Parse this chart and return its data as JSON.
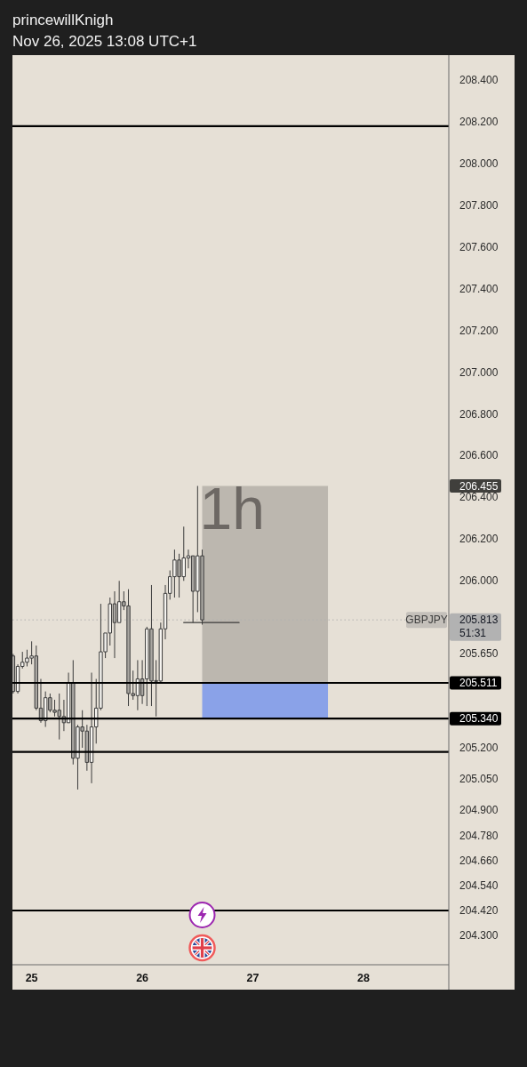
{
  "chart_data": {
    "type": "candlestick",
    "title": "princewillKnigh",
    "subtitle": "Nov 26, 2025 13:08 UTC+1",
    "x": [
      "2025-11-24T20:00",
      "2025-11-24T21:00",
      "2025-11-24T22:00",
      "2025-11-24T23:00",
      "2025-11-25T00:00",
      "2025-11-25T01:00",
      "2025-11-25T02:00",
      "2025-11-25T03:00",
      "2025-11-25T04:00",
      "2025-11-25T05:00",
      "2025-11-25T06:00",
      "2025-11-25T07:00",
      "2025-11-25T08:00",
      "2025-11-25T09:00",
      "2025-11-25T10:00",
      "2025-11-25T11:00",
      "2025-11-25T12:00",
      "2025-11-25T13:00",
      "2025-11-25T14:00",
      "2025-11-25T15:00",
      "2025-11-25T16:00",
      "2025-11-25T17:00",
      "2025-11-25T18:00",
      "2025-11-25T19:00",
      "2025-11-25T20:00",
      "2025-11-25T21:00",
      "2025-11-25T22:00",
      "2025-11-25T23:00",
      "2025-11-26T00:00",
      "2025-11-26T01:00",
      "2025-11-26T02:00",
      "2025-11-26T03:00",
      "2025-11-26T04:00",
      "2025-11-26T05:00",
      "2025-11-26T06:00",
      "2025-11-26T07:00",
      "2025-11-26T08:00",
      "2025-11-26T09:00",
      "2025-11-26T10:00",
      "2025-11-26T11:00",
      "2025-11-26T12:00",
      "2025-11-26T13:00"
    ],
    "series": [
      {
        "name": "GBPJPY",
        "color": "#3c3c3c",
        "ohlc": [
          [
            205.64,
            205.65,
            205.46,
            205.47
          ],
          [
            205.47,
            205.6,
            205.46,
            205.59
          ],
          [
            205.59,
            205.66,
            205.58,
            205.61
          ],
          [
            205.61,
            205.67,
            205.59,
            205.63
          ],
          [
            205.63,
            205.71,
            205.6,
            205.64
          ],
          [
            205.64,
            205.69,
            205.38,
            205.39
          ],
          [
            205.39,
            205.53,
            205.32,
            205.33
          ],
          [
            205.33,
            205.47,
            205.3,
            205.44
          ],
          [
            205.44,
            205.46,
            205.37,
            205.38
          ],
          [
            205.38,
            205.43,
            205.35,
            205.37
          ],
          [
            205.38,
            205.46,
            205.24,
            205.35
          ],
          [
            205.35,
            205.43,
            205.28,
            205.32
          ],
          [
            205.32,
            205.56,
            205.32,
            205.51
          ],
          [
            205.51,
            205.62,
            205.12,
            205.15
          ],
          [
            205.15,
            205.31,
            205.0,
            205.3
          ],
          [
            205.3,
            205.38,
            205.2,
            205.28
          ],
          [
            205.28,
            205.31,
            205.09,
            205.13
          ],
          [
            205.13,
            205.56,
            205.03,
            205.3
          ],
          [
            205.3,
            205.53,
            205.22,
            205.39
          ],
          [
            205.39,
            205.89,
            205.38,
            205.66
          ],
          [
            205.66,
            205.75,
            205.63,
            205.75
          ],
          [
            205.75,
            205.92,
            205.69,
            205.89
          ],
          [
            205.89,
            205.95,
            205.63,
            205.8
          ],
          [
            205.8,
            206.0,
            205.8,
            205.9
          ],
          [
            205.9,
            205.95,
            205.86,
            205.88
          ],
          [
            205.88,
            205.96,
            205.4,
            205.46
          ],
          [
            205.46,
            205.57,
            205.43,
            205.45
          ],
          [
            205.45,
            205.62,
            205.38,
            205.53
          ],
          [
            205.53,
            205.62,
            205.41,
            205.45
          ],
          [
            205.53,
            205.78,
            205.4,
            205.77
          ],
          [
            205.77,
            205.98,
            205.4,
            205.52
          ],
          [
            205.52,
            205.62,
            205.35,
            205.52
          ],
          [
            205.52,
            205.8,
            205.51,
            205.77
          ],
          [
            205.77,
            205.98,
            205.72,
            205.94
          ],
          [
            205.94,
            206.05,
            205.91,
            206.02
          ],
          [
            206.02,
            206.15,
            205.92,
            206.1
          ],
          [
            206.1,
            206.13,
            205.92,
            206.02
          ],
          [
            206.02,
            206.26,
            206.0,
            206.11
          ],
          [
            206.11,
            206.15,
            206.06,
            206.12
          ],
          [
            206.12,
            206.12,
            205.8,
            205.95
          ],
          [
            205.95,
            206.455,
            205.85,
            206.12
          ],
          [
            206.12,
            206.15,
            205.79,
            205.813
          ]
        ],
        "colors": [
          "#aaa7a2",
          "#f6f4f0",
          "#f6f4f0",
          "#f6f4f0",
          "#f6f4f0",
          "#aaa7a2",
          "#aaa7a2",
          "#f6f4f0",
          "#aaa7a2",
          "#aaa7a2",
          "#aaa7a2",
          "#aaa7a2",
          "#f6f4f0",
          "#aaa7a2",
          "#f6f4f0",
          "#aaa7a2",
          "#aaa7a2",
          "#f6f4f0",
          "#f6f4f0",
          "#f6f4f0",
          "#f6f4f0",
          "#f6f4f0",
          "#aaa7a2",
          "#f6f4f0",
          "#aaa7a2",
          "#aaa7a2",
          "#aaa7a2",
          "#f6f4f0",
          "#aaa7a2",
          "#f6f4f0",
          "#aaa7a2",
          "#f6f4f0",
          "#f6f4f0",
          "#f6f4f0",
          "#f6f4f0",
          "#f6f4f0",
          "#aaa7a2",
          "#f6f4f0",
          "#f6f4f0",
          "#aaa7a2",
          "#f6f4f0",
          "#aaa7a2"
        ]
      },
      {
        "type": "line",
        "color": "#3a3a3a",
        "x": [
          "2025-11-26T09:00",
          "2025-11-26T21:00"
        ],
        "values": [
          205.8,
          205.8
        ]
      }
    ],
    "xlim": [
      "2025-11-24T19:50",
      "2025-11-28T18:30"
    ],
    "xticks": [
      {
        "value": "2025-11-25",
        "label": "25"
      },
      {
        "value": "2025-11-26",
        "label": "26"
      },
      {
        "value": "2025-11-27",
        "label": "27"
      },
      {
        "value": "2025-11-28",
        "label": "28"
      }
    ],
    "ylim": [
      204.16,
      208.52
    ],
    "yticks": [
      {
        "value": 208.4,
        "label": "208.400"
      },
      {
        "value": 208.2,
        "label": "208.200"
      },
      {
        "value": 208.0,
        "label": "208.000"
      },
      {
        "value": 207.8,
        "label": "207.800"
      },
      {
        "value": 207.6,
        "label": "207.600"
      },
      {
        "value": 207.4,
        "label": "207.400"
      },
      {
        "value": 207.2,
        "label": "207.200"
      },
      {
        "value": 207.0,
        "label": "207.000"
      },
      {
        "value": 206.8,
        "label": "206.800"
      },
      {
        "value": 206.6,
        "label": "206.600"
      },
      {
        "value": 206.455,
        "label": "206.455"
      },
      {
        "value": 206.4,
        "label": "206.400"
      },
      {
        "value": 206.2,
        "label": "206.200"
      },
      {
        "value": 206.0,
        "label": "206.000"
      },
      {
        "value": 205.65,
        "label": "205.650"
      },
      {
        "value": 205.2,
        "label": "205.200"
      },
      {
        "value": 205.05,
        "label": "205.050"
      },
      {
        "value": 204.9,
        "label": "204.900"
      },
      {
        "value": 204.78,
        "label": "204.780"
      },
      {
        "value": 204.66,
        "label": "204.660"
      },
      {
        "value": 204.54,
        "label": "204.540"
      },
      {
        "value": 204.42,
        "label": "204.420"
      },
      {
        "value": 204.3,
        "label": "204.300"
      }
    ],
    "bands": [
      {
        "axis": "y",
        "from": 205.511,
        "to": 206.455,
        "color": "#bcb7af"
      },
      {
        "axis": "y",
        "from": 205.34,
        "to": 205.511,
        "color": "#8aa2e8"
      }
    ],
    "ref_lines": [
      {
        "axis": "y",
        "value": 205.813,
        "label": "205.813",
        "color": "#b2b2b2",
        "line_style": "dotted"
      },
      {
        "axis": "y",
        "value": 208.18,
        "color": "#000000"
      },
      {
        "axis": "y",
        "value": 205.511,
        "label": "205.511",
        "color": "#000000"
      },
      {
        "axis": "y",
        "value": 205.34,
        "label": "205.340",
        "color": "#000000"
      },
      {
        "axis": "y",
        "value": 205.18,
        "color": "#000000"
      },
      {
        "axis": "y",
        "value": 204.42,
        "color": "#000000"
      }
    ],
    "annotations": [
      {
        "text": "1h",
        "x": "2025-11-26T13:00",
        "y": 206.455
      },
      "51:31"
    ]
  }
}
